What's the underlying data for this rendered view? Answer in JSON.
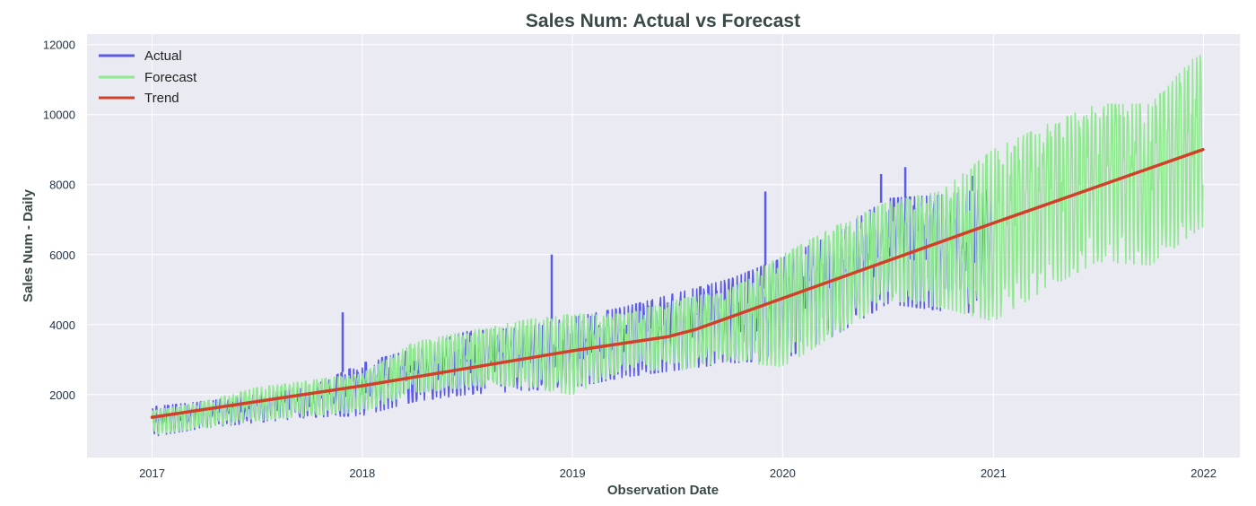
{
  "chart_data": {
    "type": "line",
    "title": "Sales Num: Actual vs Forecast",
    "xlabel": "Observation Date",
    "ylabel": "Sales Num - Daily",
    "x_ticks": [
      "2017",
      "2018",
      "2019",
      "2020",
      "2021",
      "2022"
    ],
    "y_ticks": [
      "2000",
      "4000",
      "6000",
      "8000",
      "10000",
      "12000"
    ],
    "xlim": [
      "2016-09-10",
      "2022-03-05"
    ],
    "ylim": [
      200,
      12300
    ],
    "grid": true,
    "background": "#eaeaf2",
    "legend": {
      "position": "top-left",
      "entries": [
        "Actual",
        "Forecast",
        "Trend"
      ]
    },
    "series": [
      {
        "name": "Actual",
        "color": "#5b5be6",
        "date_range": [
          "2017-01-01",
          "2020-12-31"
        ],
        "envelope": {
          "dates": [
            "2017-01-01",
            "2017-04-01",
            "2017-07-01",
            "2017-10-01",
            "2018-01-01",
            "2018-04-01",
            "2018-07-01",
            "2018-10-01",
            "2019-01-01",
            "2019-04-01",
            "2019-07-01",
            "2019-10-01",
            "2020-01-01",
            "2020-04-01",
            "2020-07-01",
            "2020-10-01",
            "2020-12-31"
          ],
          "low": [
            800,
            1050,
            1200,
            1350,
            1400,
            1800,
            2000,
            2100,
            2200,
            2500,
            2700,
            2900,
            3000,
            3700,
            4600,
            4400,
            4300
          ],
          "high": [
            1650,
            1800,
            2000,
            2200,
            2900,
            3300,
            3800,
            3900,
            4200,
            4500,
            4900,
            5300,
            5900,
            6600,
            7600,
            7700,
            7900
          ]
        },
        "spikes": [
          {
            "date": "2017-11-28",
            "value": 4350
          },
          {
            "date": "2018-11-26",
            "value": 6000
          },
          {
            "date": "2019-12-02",
            "value": 7800
          },
          {
            "date": "2020-06-20",
            "value": 8300
          },
          {
            "date": "2020-08-01",
            "value": 8500
          },
          {
            "date": "2020-11-25",
            "value": 8250
          }
        ]
      },
      {
        "name": "Forecast",
        "color": "#90e890",
        "date_range": [
          "2017-01-01",
          "2021-12-31"
        ],
        "envelope": {
          "dates": [
            "2017-01-01",
            "2017-04-01",
            "2017-07-01",
            "2017-10-01",
            "2018-01-01",
            "2018-04-01",
            "2018-07-01",
            "2018-10-01",
            "2019-01-01",
            "2019-04-01",
            "2019-07-01",
            "2019-10-01",
            "2020-01-01",
            "2020-04-01",
            "2020-07-01",
            "2020-10-01",
            "2021-01-01",
            "2021-04-01",
            "2021-07-01",
            "2021-10-01",
            "2021-12-31"
          ],
          "low": [
            850,
            1050,
            1250,
            1400,
            1500,
            2050,
            2200,
            2250,
            2000,
            2700,
            2700,
            2950,
            2800,
            3700,
            4700,
            4500,
            4100,
            5000,
            5800,
            5700,
            6800
          ],
          "high": [
            1550,
            1800,
            2200,
            2400,
            2600,
            3500,
            3800,
            4100,
            4300,
            4300,
            4700,
            5000,
            6000,
            6800,
            7500,
            7800,
            9000,
            9700,
            10300,
            10300,
            11900
          ]
        }
      },
      {
        "name": "Trend",
        "color": "#d2402a",
        "points": [
          {
            "date": "2017-01-01",
            "value": 1350
          },
          {
            "date": "2018-01-01",
            "value": 2250
          },
          {
            "date": "2019-01-01",
            "value": 3250
          },
          {
            "date": "2019-06-15",
            "value": 3650
          },
          {
            "date": "2019-08-01",
            "value": 3850
          },
          {
            "date": "2020-01-01",
            "value": 4750
          },
          {
            "date": "2021-01-01",
            "value": 6900
          },
          {
            "date": "2021-12-31",
            "value": 9000
          }
        ]
      }
    ]
  }
}
